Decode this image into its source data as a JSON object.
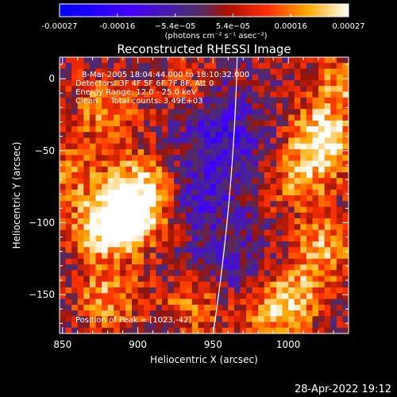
{
  "chart_data": {
    "type": "heatmap",
    "title": "Reconstructed RHESSI Image",
    "xlabel": "Heliocentric X (arcsec)",
    "ylabel": "Heliocentric Y (arcsec)",
    "xlim": [
      848,
      1040
    ],
    "ylim": [
      -177,
      15
    ],
    "x_ticks": [
      850,
      900,
      950,
      1000
    ],
    "y_ticks": [
      0,
      -50,
      -100,
      -150
    ],
    "colorbar": {
      "ticks": [
        "-0.00027",
        "-0.00016",
        "−5.4e−05",
        "5.4e−05",
        "0.00016",
        "0.00027"
      ],
      "unit": "(photons cm⁻² s⁻¹ asec⁻²)",
      "range": [
        -0.00027,
        0.00027
      ]
    },
    "annotations": [
      "8-Mar-2005 18:04:44.000 to 18:10:32.000",
      "Detectors: 3F 4F 5F 6F 7F 8F, Att 0",
      "Energy Range: 12.0 - 25.0 keV",
      "Clean     Total counts: 3.49E+03"
    ],
    "peak_label": "Position of Peak = [1023,-42]",
    "peak": [
      1023,
      -42
    ],
    "limb_arc": [
      [
        966,
        15
      ],
      [
        950,
        -177
      ]
    ],
    "hot_spots": [
      {
        "x": 1022,
        "y": -42,
        "value": 0.00026
      },
      {
        "x": 1010,
        "y": -72,
        "value": 0.00014
      },
      {
        "x": 878,
        "y": -103,
        "value": 0.00025
      },
      {
        "x": 898,
        "y": -95,
        "value": 0.00024
      },
      {
        "x": 902,
        "y": -72,
        "value": 0.00018
      },
      {
        "x": 878,
        "y": -22,
        "value": 0.00015
      },
      {
        "x": 935,
        "y": -5,
        "value": 0.00012
      },
      {
        "x": 1025,
        "y": -115,
        "value": 0.00016
      },
      {
        "x": 1005,
        "y": -148,
        "value": 0.00018
      },
      {
        "x": 880,
        "y": -152,
        "value": 0.00016
      },
      {
        "x": 935,
        "y": -158,
        "value": 0.00012
      },
      {
        "x": 1035,
        "y": -5,
        "value": 0.00014
      },
      {
        "x": 985,
        "y": -170,
        "value": 0.00012
      },
      {
        "x": 855,
        "y": -65,
        "value": 0.00012
      }
    ],
    "cold_spots": [
      {
        "x": 958,
        "y": -40,
        "value": -0.00012
      },
      {
        "x": 940,
        "y": -82,
        "value": -0.0001
      },
      {
        "x": 962,
        "y": -125,
        "value": -8e-05
      },
      {
        "x": 945,
        "y": -10,
        "value": -7e-05
      }
    ]
  },
  "footer": {
    "date": "28-Apr-2022 19:12"
  }
}
